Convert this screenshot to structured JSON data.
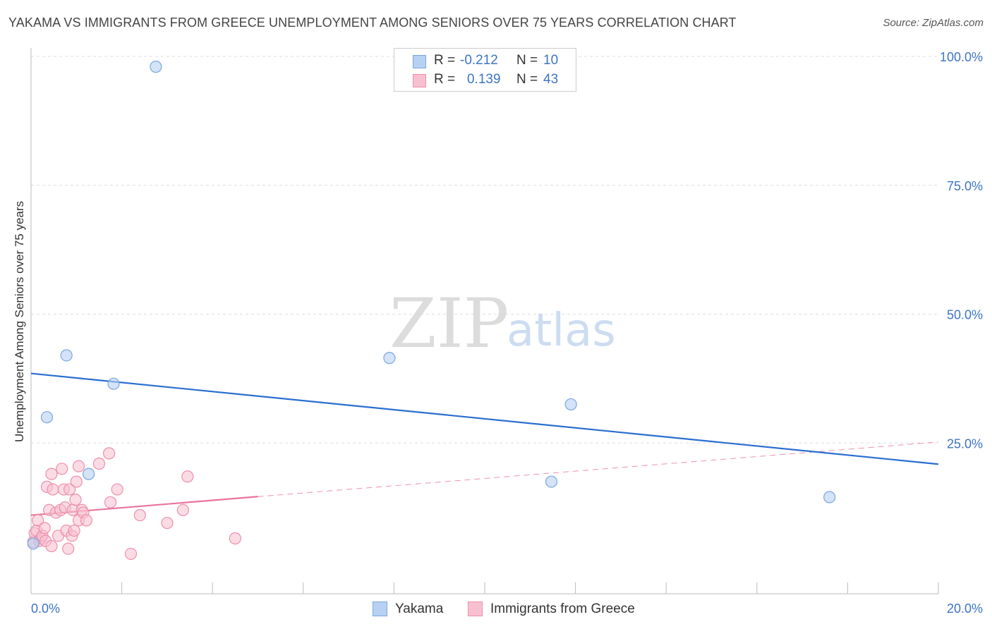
{
  "title": "YAKAMA VS IMMIGRANTS FROM GREECE UNEMPLOYMENT AMONG SENIORS OVER 75 YEARS CORRELATION CHART",
  "source": "Source: ZipAtlas.com",
  "watermark": {
    "zip": "ZIP",
    "atlas": "atlas"
  },
  "legend": {
    "r_label": "R =",
    "n_label": "N =",
    "rows": [
      {
        "name": "Yakama",
        "r": "-0.212",
        "n": "10"
      },
      {
        "name": "Immigrants from Greece",
        "r": "0.139",
        "n": "43"
      }
    ]
  },
  "colors": {
    "yakama_fill": "#b8d1f2",
    "yakama_stroke": "#7aa6e0",
    "yakama_line": "#2b6dd0",
    "greece_fill": "#f7c0d0",
    "greece_stroke": "#ec8fab",
    "greece_line": "#e8759a",
    "grid": "#dddddd",
    "axis_text": "#3d74c4"
  },
  "chart_data": {
    "type": "scatter",
    "title": "YAKAMA VS IMMIGRANTS FROM GREECE UNEMPLOYMENT AMONG SENIORS OVER 75 YEARS CORRELATION CHART",
    "xlabel": "",
    "ylabel": "Unemployment Among Seniors over 75 years",
    "xlim": [
      0,
      20
    ],
    "ylim": [
      0,
      100
    ],
    "x_tick_labels": [
      "0.0%",
      "20.0%"
    ],
    "y_ticks": [
      25,
      50,
      75,
      100
    ],
    "y_tick_labels": [
      "25.0%",
      "50.0%",
      "75.0%",
      "100.0%"
    ],
    "grid": true,
    "series": [
      {
        "name": "Yakama",
        "r": -0.212,
        "n": 10,
        "points": [
          {
            "x": 0.05,
            "y": 5.5
          },
          {
            "x": 0.35,
            "y": 30.0
          },
          {
            "x": 0.78,
            "y": 42.0
          },
          {
            "x": 1.27,
            "y": 19.0
          },
          {
            "x": 1.82,
            "y": 36.5
          },
          {
            "x": 2.75,
            "y": 98.0
          },
          {
            "x": 7.9,
            "y": 41.5
          },
          {
            "x": 11.47,
            "y": 17.5
          },
          {
            "x": 11.9,
            "y": 32.5
          },
          {
            "x": 17.6,
            "y": 14.5
          }
        ],
        "trend": {
          "x": [
            0,
            20
          ],
          "y": [
            38.5,
            20.9
          ]
        }
      },
      {
        "name": "Immigrants from Greece",
        "r": 0.139,
        "n": 43,
        "points": [
          {
            "x": 0.05,
            "y": 5.8
          },
          {
            "x": 0.08,
            "y": 7.5
          },
          {
            "x": 0.12,
            "y": 8.0
          },
          {
            "x": 0.15,
            "y": 10.0
          },
          {
            "x": 0.18,
            "y": 6.0
          },
          {
            "x": 0.22,
            "y": 6.5
          },
          {
            "x": 0.25,
            "y": 7.0
          },
          {
            "x": 0.3,
            "y": 8.5
          },
          {
            "x": 0.32,
            "y": 6.0
          },
          {
            "x": 0.35,
            "y": 16.5
          },
          {
            "x": 0.4,
            "y": 12.0
          },
          {
            "x": 0.45,
            "y": 5.0
          },
          {
            "x": 0.45,
            "y": 19.0
          },
          {
            "x": 0.48,
            "y": 16.0
          },
          {
            "x": 0.55,
            "y": 11.5
          },
          {
            "x": 0.6,
            "y": 7.0
          },
          {
            "x": 0.65,
            "y": 12.0
          },
          {
            "x": 0.68,
            "y": 20.0
          },
          {
            "x": 0.72,
            "y": 16.0
          },
          {
            "x": 0.75,
            "y": 12.5
          },
          {
            "x": 0.78,
            "y": 8.0
          },
          {
            "x": 0.82,
            "y": 4.5
          },
          {
            "x": 0.85,
            "y": 16.0
          },
          {
            "x": 0.9,
            "y": 7.0
          },
          {
            "x": 0.92,
            "y": 12.0
          },
          {
            "x": 0.95,
            "y": 8.0
          },
          {
            "x": 0.98,
            "y": 14.0
          },
          {
            "x": 1.0,
            "y": 17.5
          },
          {
            "x": 1.05,
            "y": 20.5
          },
          {
            "x": 1.05,
            "y": 10.0
          },
          {
            "x": 1.12,
            "y": 12.0
          },
          {
            "x": 1.15,
            "y": 11.5
          },
          {
            "x": 1.22,
            "y": 10.0
          },
          {
            "x": 1.5,
            "y": 21.0
          },
          {
            "x": 1.75,
            "y": 13.5
          },
          {
            "x": 1.72,
            "y": 23.0
          },
          {
            "x": 1.9,
            "y": 16.0
          },
          {
            "x": 2.2,
            "y": 3.5
          },
          {
            "x": 2.4,
            "y": 11.0
          },
          {
            "x": 3.0,
            "y": 9.5
          },
          {
            "x": 3.35,
            "y": 12.0
          },
          {
            "x": 3.45,
            "y": 18.5
          },
          {
            "x": 4.5,
            "y": 6.5
          }
        ],
        "trend": {
          "x": [
            0,
            5
          ],
          "y": [
            11.0,
            14.6
          ]
        },
        "trend_dashed_extension": {
          "x": [
            5,
            20
          ],
          "y": [
            14.6,
            25.2
          ]
        }
      }
    ]
  }
}
